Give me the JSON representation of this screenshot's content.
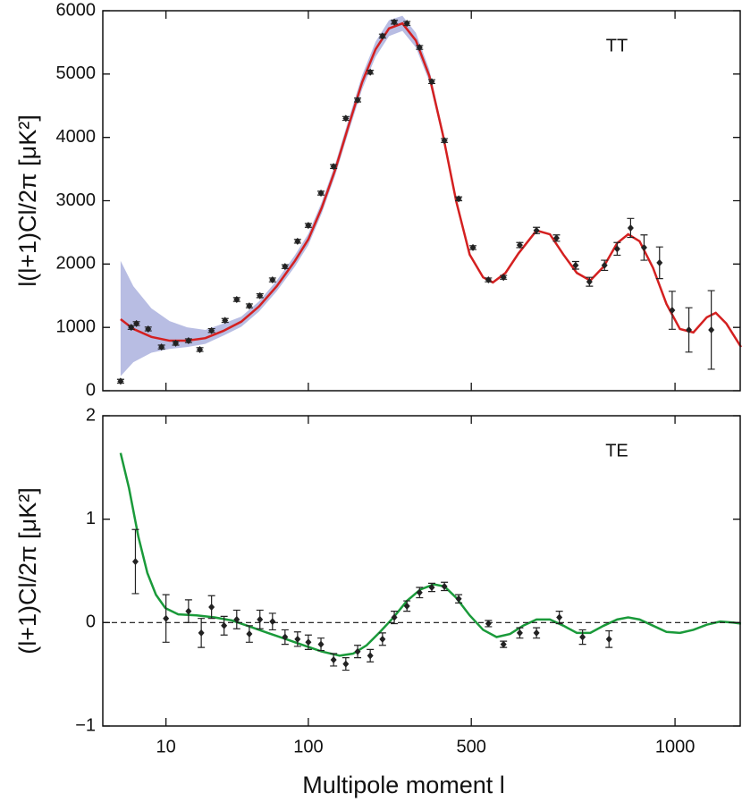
{
  "chart_data": [
    {
      "type": "errorbar",
      "panel_label": "TT",
      "ylabel": "l(l+1)Cl/2π [μK²]",
      "xscale": "log-linear",
      "xlim": [
        3.6,
        1160
      ],
      "xticks": [
        10,
        100,
        500,
        1000
      ],
      "ylim": [
        0,
        6000
      ],
      "yticks": [
        0,
        1000,
        2000,
        3000,
        4000,
        5000,
        6000
      ],
      "series": [
        {
          "type": "band",
          "color": "#b8bde3",
          "x": [
            4.8,
            5.9,
            7.9,
            10.6,
            14.1,
            18.9,
            25.3,
            33.8,
            45,
            60,
            80.5,
            100,
            133,
            166,
            199,
            232,
            265,
            298,
            331,
            364,
            397,
            430,
            463,
            496
          ],
          "lower": [
            230,
            450,
            600,
            660,
            690,
            740,
            870,
            1010,
            1250,
            1570,
            1960,
            2300,
            2800,
            3400,
            4090,
            4760,
            5270,
            5600,
            5680,
            5420,
            4880,
            3980,
            2940,
            2130
          ],
          "upper": [
            2050,
            1650,
            1300,
            1100,
            1000,
            960,
            1060,
            1170,
            1410,
            1740,
            2140,
            2480,
            2980,
            3580,
            4290,
            4980,
            5510,
            5850,
            5920,
            5650,
            5070,
            4120,
            3040,
            2180
          ]
        },
        {
          "type": "line",
          "color": "#d42020",
          "x": [
            4.8,
            5.9,
            7.9,
            10.6,
            14.1,
            18.9,
            25.3,
            33.8,
            45,
            60,
            80.5,
            100,
            133,
            166,
            199,
            232,
            265,
            298,
            331,
            364,
            397,
            430,
            463,
            496,
            529,
            553,
            584,
            616,
            660,
            693,
            726,
            759,
            792,
            825,
            858,
            885,
            913,
            946,
            979,
            1012,
            1045,
            1078,
            1100,
            1126,
            1162
          ],
          "values": [
            1130,
            975,
            850,
            790,
            790,
            830,
            945,
            1090,
            1330,
            1650,
            2050,
            2390,
            2890,
            3490,
            4190,
            4870,
            5390,
            5720,
            5800,
            5530,
            4970,
            4050,
            2990,
            2150,
            1790,
            1710,
            1860,
            2170,
            2530,
            2470,
            2150,
            1860,
            1740,
            1960,
            2330,
            2470,
            2360,
            1940,
            1370,
            975,
            920,
            1160,
            1230,
            1060,
            690
          ]
        },
        {
          "type": "points",
          "color": "#222",
          "x": [
            4.8,
            5.7,
            6.2,
            7.5,
            9.3,
            11.7,
            14.4,
            17.3,
            20.9,
            26,
            31.4,
            38.5,
            45.7,
            56,
            68.6,
            84,
            100,
            131,
            162,
            192,
            221,
            252,
            282,
            311,
            342,
            373,
            403,
            434,
            469,
            504,
            542,
            579,
            619,
            660,
            709,
            756,
            790,
            827,
            858,
            891,
            924,
            962,
            993,
            1034,
            1089
          ],
          "values": [
            150,
            1000,
            1060,
            975,
            690,
            750,
            790,
            650,
            950,
            1110,
            1440,
            1340,
            1500,
            1750,
            1960,
            2360,
            2610,
            3120,
            3540,
            4300,
            4590,
            5030,
            5600,
            5820,
            5800,
            5420,
            4880,
            3950,
            3030,
            2260,
            1750,
            1790,
            2300,
            2530,
            2410,
            1980,
            1720,
            1980,
            2240,
            2570,
            2260,
            2020,
            1270,
            960,
            960
          ],
          "errors": [
            30,
            30,
            30,
            30,
            30,
            30,
            30,
            30,
            30,
            30,
            30,
            30,
            30,
            30,
            30,
            30,
            30,
            30,
            30,
            30,
            30,
            30,
            30,
            30,
            30,
            30,
            30,
            30,
            30,
            30,
            30,
            30,
            40,
            50,
            50,
            60,
            70,
            80,
            100,
            150,
            200,
            250,
            300,
            350,
            620
          ]
        }
      ]
    },
    {
      "type": "errorbar",
      "panel_label": "TE",
      "ylabel": "(l+1)Cl/2π [μK²]",
      "xlabel": "Multipole moment  l",
      "xscale": "log-linear",
      "xlim": [
        3.6,
        1160
      ],
      "xticks": [
        10,
        100,
        500,
        1000
      ],
      "ylim": [
        -1,
        2
      ],
      "yticks": [
        {
          "value": -1,
          "label": "−1"
        },
        0,
        1,
        2
      ],
      "reference_line": 0,
      "series": [
        {
          "type": "line",
          "color": "#1a9a3a",
          "x": [
            4.8,
            5.5,
            6.4,
            7.4,
            8.5,
            9.9,
            12.2,
            16.4,
            21.9,
            29.2,
            39,
            52,
            69.6,
            93,
            133,
            177,
            210,
            243,
            276,
            309,
            342,
            375,
            408,
            434,
            463,
            496,
            529,
            562,
            595,
            627,
            660,
            693,
            726,
            759,
            792,
            825,
            858,
            885,
            913,
            946,
            979,
            1012,
            1045,
            1078,
            1111,
            1144,
            1162
          ],
          "values": [
            1.64,
            1.3,
            0.83,
            0.48,
            0.27,
            0.14,
            0.08,
            0.07,
            0.05,
            0.02,
            -0.04,
            -0.1,
            -0.16,
            -0.22,
            -0.28,
            -0.32,
            -0.3,
            -0.22,
            -0.09,
            0.05,
            0.21,
            0.32,
            0.37,
            0.35,
            0.24,
            0.07,
            -0.07,
            -0.14,
            -0.11,
            -0.03,
            0.03,
            0.03,
            -0.03,
            -0.1,
            -0.1,
            -0.03,
            0.03,
            0.05,
            0.03,
            -0.03,
            -0.09,
            -0.1,
            -0.07,
            -0.02,
            0.01,
            0,
            -0.01
          ]
        },
        {
          "type": "points",
          "color": "#222",
          "x": [
            6.1,
            10,
            14.4,
            17.7,
            20.9,
            25.6,
            31.4,
            38.5,
            45.7,
            56,
            68.6,
            84,
            100,
            131,
            162,
            192,
            221,
            252,
            282,
            311,
            342,
            373,
            403,
            434,
            469,
            542,
            579,
            619,
            660,
            716,
            773,
            838
          ],
          "values": [
            0.59,
            0.04,
            0.11,
            -0.1,
            0.15,
            -0.03,
            0.03,
            -0.11,
            0.03,
            0.01,
            -0.14,
            -0.16,
            -0.19,
            -0.21,
            -0.36,
            -0.4,
            -0.28,
            -0.32,
            -0.16,
            0.05,
            0.16,
            0.29,
            0.34,
            0.35,
            0.23,
            -0.01,
            -0.21,
            -0.1,
            -0.1,
            0.05,
            -0.14,
            -0.16
          ],
          "errors": [
            0.31,
            0.23,
            0.11,
            0.14,
            0.11,
            0.09,
            0.09,
            0.08,
            0.09,
            0.08,
            0.07,
            0.07,
            0.07,
            0.06,
            0.06,
            0.06,
            0.06,
            0.06,
            0.06,
            0.06,
            0.05,
            0.05,
            0.04,
            0.04,
            0.04,
            0.03,
            0.03,
            0.05,
            0.05,
            0.06,
            0.07,
            0.08
          ]
        }
      ]
    }
  ]
}
